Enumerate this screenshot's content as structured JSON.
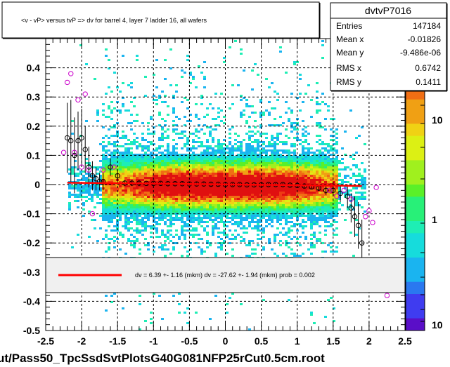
{
  "title": "<v - vP>       versus  tvP =>  dv for barrel 4, layer 7 ladder 16, all wafers",
  "footer": "ut/Pass50_TpcSsdSvtPlotsG40G081NFP25rCut0.5cm.root",
  "stats": {
    "name": "dvtvP7016",
    "rows": [
      {
        "label": "Entries",
        "value": "147184"
      },
      {
        "label": "Mean x",
        "value": "-0.01826"
      },
      {
        "label": "Mean y",
        "value": "-9.486e-06"
      },
      {
        "label": "RMS x",
        "value": "0.6742"
      },
      {
        "label": "RMS y",
        "value": "0.1411"
      }
    ]
  },
  "legend": {
    "text": "dv =    6.39 +-  1.16 (mkm) dv =  -27.62 +-  1.94 (mkm) prob = 0.002",
    "color": "#ff0000"
  },
  "colors": {
    "fit": "#ff0000",
    "profile_open": "#000000",
    "profile_alt": "#cc00cc",
    "palette": [
      "#5a0ec8",
      "#3f3cf0",
      "#2a78f0",
      "#1ab4f0",
      "#16dcdc",
      "#1eeeb4",
      "#28f078",
      "#5af028",
      "#a0f01e",
      "#dcf014",
      "#f0d214",
      "#f0a014",
      "#f06e14",
      "#ef3c14",
      "#e01010"
    ]
  },
  "chart_data": {
    "type": "heatmap",
    "xlim": [
      -2.5,
      2.5
    ],
    "ylim": [
      -0.5,
      0.5
    ],
    "xticks": [
      -2.5,
      -2,
      -1.5,
      -1,
      -0.5,
      0,
      0.5,
      1,
      1.5,
      2,
      2.5
    ],
    "yticks": [
      -0.5,
      -0.4,
      -0.3,
      -0.2,
      -0.1,
      0,
      0.1,
      0.2,
      0.3,
      0.4
    ],
    "x_tick_labels": [
      "-2.5",
      "-2",
      "-1.5",
      "-1",
      "-0.5",
      "0",
      "0.5",
      "1",
      "1.5",
      "2",
      "2.5"
    ],
    "y_tick_labels": [
      "-0.5",
      "-0.4",
      "-0.3",
      "-0.2",
      "-0.1",
      "0",
      "0.1",
      "0.2",
      "0.3",
      "0.4"
    ],
    "z_tick_labels": [
      "10",
      "1",
      "10"
    ],
    "grid": true,
    "fit_line": {
      "x": [
        -2.2,
        1.9
      ],
      "y": [
        0.0064,
        -0.0047
      ]
    },
    "profile_black": [
      {
        "x": -2.2,
        "y": 0.16,
        "err": 0.12
      },
      {
        "x": -2.15,
        "y": 0.15,
        "err": 0.14
      },
      {
        "x": -2.1,
        "y": 0.1,
        "err": 0.13
      },
      {
        "x": -2.05,
        "y": 0.15,
        "err": 0.1
      },
      {
        "x": -2.0,
        "y": 0.16,
        "err": 0.1
      },
      {
        "x": -1.95,
        "y": 0.12,
        "err": 0.08
      },
      {
        "x": -1.9,
        "y": 0.06,
        "err": 0.07
      },
      {
        "x": -1.85,
        "y": 0.03,
        "err": 0.05
      },
      {
        "x": -1.8,
        "y": 0.02,
        "err": 0.04
      },
      {
        "x": -1.75,
        "y": 0.01,
        "err": 0.03
      },
      {
        "x": -1.7,
        "y": 0.01,
        "err": 0.03
      },
      {
        "x": -1.6,
        "y": 0.06,
        "err": 0.03
      },
      {
        "x": -1.5,
        "y": 0.03,
        "err": 0.02
      },
      {
        "x": -1.4,
        "y": 0.005,
        "err": 0.01
      },
      {
        "x": -1.3,
        "y": 0.005,
        "err": 0.01
      },
      {
        "x": -1.2,
        "y": 0.005,
        "err": 0.01
      },
      {
        "x": -1.1,
        "y": 0.004,
        "err": 0.005
      },
      {
        "x": -1.0,
        "y": 0.004,
        "err": 0.005
      },
      {
        "x": -0.9,
        "y": 0.004,
        "err": 0.005
      },
      {
        "x": -0.8,
        "y": 0.003,
        "err": 0.005
      },
      {
        "x": -0.7,
        "y": 0.003,
        "err": 0.005
      },
      {
        "x": -0.6,
        "y": 0.003,
        "err": 0.005
      },
      {
        "x": -0.5,
        "y": 0.002,
        "err": 0.005
      },
      {
        "x": -0.4,
        "y": 0.002,
        "err": 0.005
      },
      {
        "x": -0.3,
        "y": 0.002,
        "err": 0.005
      },
      {
        "x": -0.2,
        "y": 0.001,
        "err": 0.005
      },
      {
        "x": -0.1,
        "y": 0.001,
        "err": 0.005
      },
      {
        "x": 0.0,
        "y": 0.0,
        "err": 0.005
      },
      {
        "x": 0.1,
        "y": 0.0,
        "err": 0.005
      },
      {
        "x": 0.2,
        "y": 0.0,
        "err": 0.005
      },
      {
        "x": 0.3,
        "y": -0.001,
        "err": 0.005
      },
      {
        "x": 0.4,
        "y": -0.001,
        "err": 0.005
      },
      {
        "x": 0.5,
        "y": -0.001,
        "err": 0.005
      },
      {
        "x": 0.6,
        "y": 0.0,
        "err": 0.005
      },
      {
        "x": 0.7,
        "y": 0.0,
        "err": 0.005
      },
      {
        "x": 0.8,
        "y": 0.0,
        "err": 0.005
      },
      {
        "x": 0.9,
        "y": -0.002,
        "err": 0.005
      },
      {
        "x": 1.0,
        "y": -0.003,
        "err": 0.005
      },
      {
        "x": 1.1,
        "y": -0.005,
        "err": 0.006
      },
      {
        "x": 1.2,
        "y": -0.008,
        "err": 0.008
      },
      {
        "x": 1.3,
        "y": -0.012,
        "err": 0.01
      },
      {
        "x": 1.4,
        "y": -0.02,
        "err": 0.015
      },
      {
        "x": 1.5,
        "y": -0.02,
        "err": 0.02
      },
      {
        "x": 1.6,
        "y": -0.03,
        "err": 0.03
      },
      {
        "x": 1.7,
        "y": -0.04,
        "err": 0.04
      },
      {
        "x": 1.75,
        "y": -0.08,
        "err": 0.05
      },
      {
        "x": 1.8,
        "y": -0.11,
        "err": 0.07
      },
      {
        "x": 1.85,
        "y": -0.14,
        "err": 0.08
      },
      {
        "x": 1.9,
        "y": -0.2,
        "err": 0.08
      }
    ],
    "profile_magenta": [
      {
        "x": -2.25,
        "y": 0.11
      },
      {
        "x": -2.2,
        "y": 0.35
      },
      {
        "x": -2.15,
        "y": 0.38
      },
      {
        "x": -2.05,
        "y": 0.29
      },
      {
        "x": -1.95,
        "y": 0.31
      },
      {
        "x": -2.1,
        "y": 0.11
      },
      {
        "x": -2.0,
        "y": 0.06
      },
      {
        "x": -1.9,
        "y": 0.05
      },
      {
        "x": -1.85,
        "y": -0.1
      },
      {
        "x": -1.7,
        "y": 0.05
      },
      {
        "x": -1.55,
        "y": 0.06
      },
      {
        "x": 1.45,
        "y": -0.02
      },
      {
        "x": 1.55,
        "y": -0.04
      },
      {
        "x": 1.65,
        "y": -0.02
      },
      {
        "x": 1.75,
        "y": -0.05
      },
      {
        "x": 1.95,
        "y": -0.11
      },
      {
        "x": 2.0,
        "y": -0.09
      },
      {
        "x": 2.05,
        "y": -0.13
      },
      {
        "x": 2.1,
        "y": -0.01
      },
      {
        "x": 2.25,
        "y": -0.38
      }
    ]
  }
}
